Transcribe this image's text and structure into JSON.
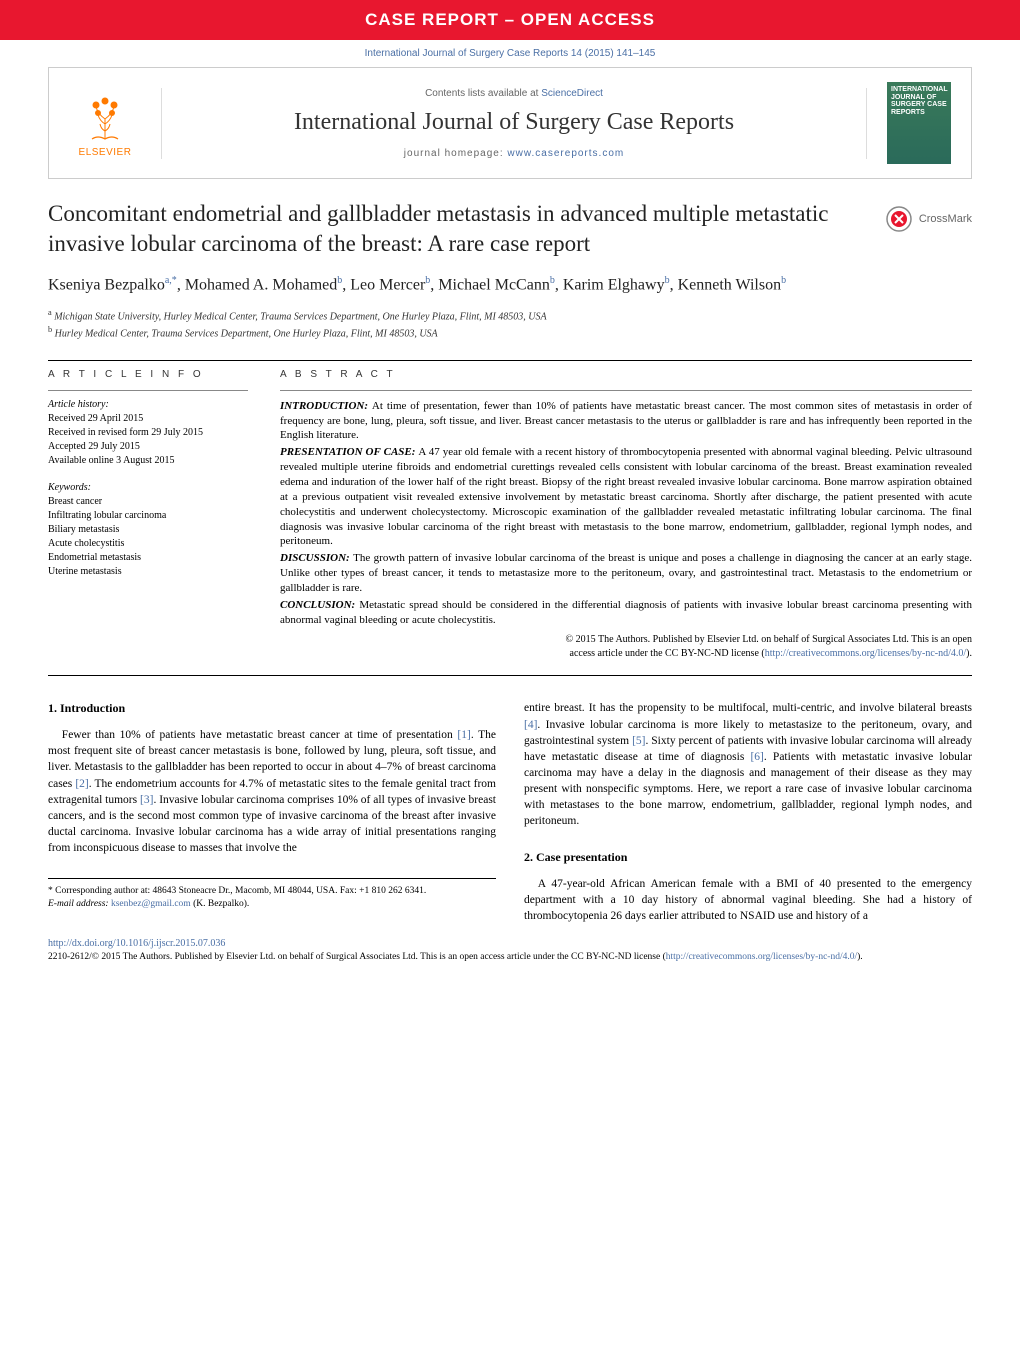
{
  "banner": {
    "text": "CASE REPORT – OPEN ACCESS",
    "bg_color": "#e8172f",
    "text_color": "#ffffff"
  },
  "citation": "International Journal of Surgery Case Reports 14 (2015) 141–145",
  "journal_header": {
    "publisher": "ELSEVIER",
    "contents_prefix": "Contents lists available at ",
    "contents_link": "ScienceDirect",
    "journal_name": "International Journal of Surgery Case Reports",
    "homepage_prefix": "journal homepage: ",
    "homepage_link": "www.casereports.com",
    "cover_text": "INTERNATIONAL JOURNAL OF SURGERY CASE REPORTS"
  },
  "crossmark": "CrossMark",
  "article": {
    "title": "Concomitant endometrial and gallbladder metastasis in advanced multiple metastatic invasive lobular carcinoma of the breast: A rare case report",
    "authors_html": "Kseniya Bezpalko<sup>a,*</sup>, Mohamed A. Mohamed<sup>b</sup>, Leo Mercer<sup>b</sup>, Michael McCann<sup>b</sup>, Karim Elghawy<sup>b</sup>, Kenneth Wilson<sup>b</sup>",
    "affiliations": [
      {
        "sup": "a",
        "text": "Michigan State University, Hurley Medical Center, Trauma Services Department, One Hurley Plaza, Flint, MI 48503, USA"
      },
      {
        "sup": "b",
        "text": "Hurley Medical Center, Trauma Services Department, One Hurley Plaza, Flint, MI 48503, USA"
      }
    ]
  },
  "article_info": {
    "heading": "A R T I C L E   I N F O",
    "history_label": "Article history:",
    "history": [
      "Received 29 April 2015",
      "Received in revised form 29 July 2015",
      "Accepted 29 July 2015",
      "Available online 3 August 2015"
    ],
    "keywords_label": "Keywords:",
    "keywords": [
      "Breast cancer",
      "Infiltrating lobular carcinoma",
      "Biliary metastasis",
      "Acute cholecystitis",
      "Endometrial metastasis",
      "Uterine metastasis"
    ]
  },
  "abstract": {
    "heading": "A B S T R A C T",
    "sections": [
      {
        "label": "INTRODUCTION:",
        "text": "At time of presentation, fewer than 10% of patients have metastatic breast cancer. The most common sites of metastasis in order of frequency are bone, lung, pleura, soft tissue, and liver. Breast cancer metastasis to the uterus or gallbladder is rare and has infrequently been reported in the English literature."
      },
      {
        "label": "PRESENTATION OF CASE:",
        "text": "A 47 year old female with a recent history of thrombocytopenia presented with abnormal vaginal bleeding. Pelvic ultrasound revealed multiple uterine fibroids and endometrial curettings revealed cells consistent with lobular carcinoma of the breast. Breast examination revealed edema and induration of the lower half of the right breast. Biopsy of the right breast revealed invasive lobular carcinoma. Bone marrow aspiration obtained at a previous outpatient visit revealed extensive involvement by metastatic breast carcinoma. Shortly after discharge, the patient presented with acute cholecystitis and underwent cholecystectomy. Microscopic examination of the gallbladder revealed metastatic infiltrating lobular carcinoma. The final diagnosis was invasive lobular carcinoma of the right breast with metastasis to the bone marrow, endometrium, gallbladder, regional lymph nodes, and peritoneum."
      },
      {
        "label": "DISCUSSION:",
        "text": "The growth pattern of invasive lobular carcinoma of the breast is unique and poses a challenge in diagnosing the cancer at an early stage. Unlike other types of breast cancer, it tends to metastasize more to the peritoneum, ovary, and gastrointestinal tract. Metastasis to the endometrium or gallbladder is rare."
      },
      {
        "label": "CONCLUSION:",
        "text": "Metastatic spread should be considered in the differential diagnosis of patients with invasive lobular breast carcinoma presenting with abnormal vaginal bleeding or acute cholecystitis."
      }
    ],
    "copyright_line1": "© 2015 The Authors. Published by Elsevier Ltd. on behalf of Surgical Associates Ltd. This is an open",
    "copyright_line2_prefix": "access article under the CC BY-NC-ND license (",
    "copyright_link": "http://creativecommons.org/licenses/by-nc-nd/4.0/",
    "copyright_line2_suffix": ")."
  },
  "body": {
    "sections": [
      {
        "heading": "1.  Introduction",
        "paragraphs": [
          "Fewer than 10% of patients have metastatic breast cancer at time of presentation [1]. The most frequent site of breast cancer metastasis is bone, followed by lung, pleura, soft tissue, and liver. Metastasis to the gallbladder has been reported to occur in about 4–7% of breast carcinoma cases [2]. The endometrium accounts for 4.7% of metastatic sites to the female genital tract from extragenital tumors [3]. Invasive lobular carcinoma comprises 10% of all types of invasive breast cancers, and is the second most common type of invasive carcinoma of the breast after invasive ductal carcinoma. Invasive lobular carcinoma has a wide array of initial presentations ranging from inconspicuous disease to masses that involve the"
        ]
      }
    ],
    "col2_continuation": "entire breast. It has the propensity to be multifocal, multi-centric, and involve bilateral breasts [4]. Invasive lobular carcinoma is more likely to metastasize to the peritoneum, ovary, and gastrointestinal system [5]. Sixty percent of patients with invasive lobular carcinoma will already have metastatic disease at time of diagnosis [6]. Patients with metastatic invasive lobular carcinoma may have a delay in the diagnosis and management of their disease as they may present with nonspecific symptoms. Here, we report a rare case of invasive lobular carcinoma with metastases to the bone marrow, endometrium, gallbladder, regional lymph nodes, and peritoneum.",
    "section2": {
      "heading": "2.  Case presentation",
      "paragraph": "A 47-year-old African American female with a BMI of 40 presented to the emergency department with a 10 day history of abnormal vaginal bleeding. She had a history of thrombocytopenia 26 days earlier attributed to NSAID use and history of a"
    },
    "refs": {
      "1": "[1]",
      "2": "[2]",
      "3": "[3]",
      "4": "[4]",
      "5": "[5]",
      "6": "[6]"
    }
  },
  "footnotes": {
    "corresponding": "* Corresponding author at: 48643 Stoneacre Dr., Macomb, MI 48044, USA. Fax: +1 810 262 6341.",
    "email_label": "E-mail address: ",
    "email": "ksenbez@gmail.com",
    "email_suffix": " (K. Bezpalko)."
  },
  "footer": {
    "doi": "http://dx.doi.org/10.1016/j.ijscr.2015.07.036",
    "copyright_prefix": "2210-2612/© 2015 The Authors. Published by Elsevier Ltd. on behalf of Surgical Associates Ltd. This is an open access article under the CC BY-NC-ND license (",
    "copyright_link": "http://creativecommons.org/licenses/by-nc-nd/4.0/",
    "copyright_suffix": ")."
  },
  "colors": {
    "banner_bg": "#e8172f",
    "link_color": "#4a6fa5",
    "elsevier_orange": "#ff7a00",
    "cover_bg": "#3a7a5a"
  },
  "typography": {
    "title_fontsize": 23,
    "body_fontsize": 11.5,
    "abstract_fontsize": 11,
    "banner_fontsize": 17
  }
}
